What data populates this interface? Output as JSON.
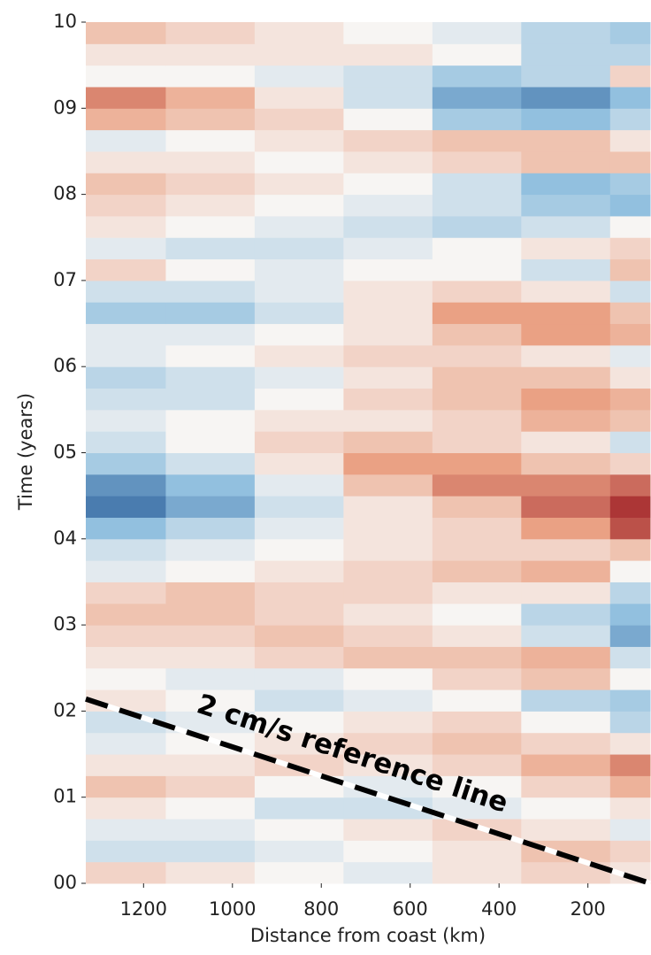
{
  "chart_data": {
    "type": "heatmap",
    "xlabel": "Distance from coast (km)",
    "ylabel": "Time (years)",
    "annotation": "2 cm/s reference line",
    "xlim": [
      1330,
      60
    ],
    "ylim": [
      0,
      10
    ],
    "xticks": [
      1200,
      1000,
      800,
      600,
      400,
      200
    ],
    "yticks": [
      {
        "value": 0,
        "label": "00"
      },
      {
        "value": 1,
        "label": "01"
      },
      {
        "value": 2,
        "label": "02"
      },
      {
        "value": 3,
        "label": "03"
      },
      {
        "value": 4,
        "label": "04"
      },
      {
        "value": 5,
        "label": "05"
      },
      {
        "value": 6,
        "label": "06"
      },
      {
        "value": 7,
        "label": "07"
      },
      {
        "value": 8,
        "label": "08"
      },
      {
        "value": 9,
        "label": "09"
      },
      {
        "value": 10,
        "label": "10"
      }
    ],
    "zlim": [
      -1,
      1
    ],
    "colormap": [
      "#1a4f8f",
      "#92c0df",
      "#f7f5f3",
      "#eaa184",
      "#9c1b22"
    ],
    "x_bins": [
      1330,
      1150,
      950,
      750,
      550,
      350,
      150,
      60
    ],
    "y_bins": [
      0,
      0.25,
      0.5,
      0.75,
      1,
      1.25,
      1.5,
      1.75,
      2,
      2.25,
      2.5,
      2.75,
      3,
      3.25,
      3.5,
      3.75,
      4,
      4.25,
      4.5,
      4.75,
      5,
      5.25,
      5.5,
      5.75,
      6,
      6.25,
      6.5,
      6.75,
      7,
      7.25,
      7.5,
      7.75,
      8,
      8.25,
      8.5,
      8.75,
      9,
      9.25,
      9.5,
      9.75,
      10
    ],
    "z": [
      [
        0.2,
        0.1,
        0,
        -0.1,
        0.1,
        0.2,
        0.1
      ],
      [
        -0.2,
        -0.2,
        -0.1,
        0,
        0.1,
        0.3,
        0.2
      ],
      [
        -0.1,
        -0.1,
        0,
        0.1,
        0.2,
        0.1,
        -0.1
      ],
      [
        0.1,
        0,
        -0.2,
        -0.2,
        -0.1,
        0,
        0.1
      ],
      [
        0.3,
        0.2,
        0,
        -0.1,
        0,
        0.2,
        0.4
      ],
      [
        0.1,
        0.1,
        0.2,
        0.1,
        0.2,
        0.4,
        0.6
      ],
      [
        -0.1,
        0,
        0.1,
        0.2,
        0.3,
        0.2,
        0.1
      ],
      [
        -0.2,
        -0.1,
        0,
        0.1,
        0.2,
        0,
        -0.3
      ],
      [
        0.1,
        0,
        -0.2,
        -0.1,
        0,
        -0.3,
        -0.4
      ],
      [
        0,
        -0.1,
        -0.1,
        0,
        0.2,
        0.3,
        0
      ],
      [
        0.1,
        0.1,
        0.2,
        0.3,
        0.3,
        0.4,
        -0.2
      ],
      [
        0.2,
        0.2,
        0.3,
        0.2,
        0.1,
        -0.2,
        -0.6
      ],
      [
        0.3,
        0.3,
        0.2,
        0.1,
        0,
        -0.3,
        -0.5
      ],
      [
        0.2,
        0.3,
        0.2,
        0.2,
        0.1,
        0.1,
        -0.3
      ],
      [
        -0.1,
        0,
        0.1,
        0.2,
        0.3,
        0.4,
        0
      ],
      [
        -0.2,
        -0.1,
        0,
        0.1,
        0.2,
        0.2,
        0.3
      ],
      [
        -0.5,
        -0.3,
        -0.1,
        0.1,
        0.2,
        0.5,
        0.8
      ],
      [
        -0.8,
        -0.6,
        -0.2,
        0.1,
        0.3,
        0.7,
        0.9
      ],
      [
        -0.7,
        -0.5,
        -0.1,
        0.3,
        0.6,
        0.6,
        0.7
      ],
      [
        -0.4,
        -0.2,
        0.1,
        0.5,
        0.5,
        0.3,
        0.2
      ],
      [
        -0.2,
        0,
        0.2,
        0.3,
        0.2,
        0.1,
        -0.2
      ],
      [
        -0.1,
        0,
        0.1,
        0.1,
        0.2,
        0.4,
        0.3
      ],
      [
        -0.2,
        -0.2,
        0,
        0.2,
        0.3,
        0.5,
        0.4
      ],
      [
        -0.3,
        -0.2,
        -0.1,
        0.1,
        0.3,
        0.3,
        0.1
      ],
      [
        -0.1,
        0,
        0.1,
        0.2,
        0.2,
        0.1,
        -0.1
      ],
      [
        -0.1,
        -0.1,
        0,
        0.1,
        0.3,
        0.5,
        0.4
      ],
      [
        -0.4,
        -0.4,
        -0.2,
        0.1,
        0.5,
        0.5,
        0.3
      ],
      [
        -0.2,
        -0.2,
        -0.1,
        0.1,
        0.2,
        0.1,
        -0.2
      ],
      [
        0.2,
        0,
        -0.1,
        0,
        0,
        -0.2,
        0.3
      ],
      [
        -0.1,
        -0.2,
        -0.2,
        -0.1,
        0,
        0.1,
        0.2
      ],
      [
        0.1,
        0,
        -0.1,
        -0.2,
        -0.3,
        -0.2,
        0
      ],
      [
        0.2,
        0.1,
        0,
        -0.1,
        -0.2,
        -0.4,
        -0.5
      ],
      [
        0.3,
        0.2,
        0.1,
        0,
        -0.2,
        -0.5,
        -0.4
      ],
      [
        0.1,
        0.1,
        0,
        0.1,
        0.2,
        0.3,
        0.3
      ],
      [
        -0.1,
        0,
        0.1,
        0.2,
        0.3,
        0.3,
        0.1
      ],
      [
        0.4,
        0.3,
        0.2,
        0,
        -0.4,
        -0.5,
        -0.3
      ],
      [
        0.6,
        0.4,
        0.1,
        -0.2,
        -0.6,
        -0.7,
        -0.5
      ],
      [
        0,
        0,
        -0.1,
        -0.2,
        -0.4,
        -0.3,
        0.2
      ],
      [
        0.1,
        0.1,
        0.1,
        0.1,
        0,
        -0.3,
        -0.3
      ],
      [
        0.3,
        0.2,
        0.1,
        0,
        -0.1,
        -0.3,
        -0.4
      ]
    ],
    "reference_line": {
      "x": [
        1330,
        60
      ],
      "y": [
        2.14,
        0
      ]
    }
  }
}
